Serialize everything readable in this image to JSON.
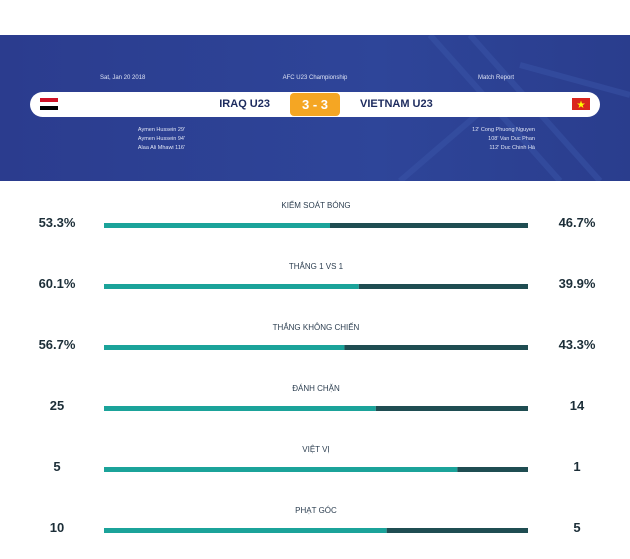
{
  "header": {
    "date": "Sat, Jan 20 2018",
    "competition": "AFC U23 Championship",
    "report": "Match Report",
    "home_team": "IRAQ U23",
    "score": "3 - 3",
    "away_team": "VIETNAM U23",
    "home_scorers": [
      "Aymen Hussein 29'",
      "Aymen Hussein 94'",
      "Alaa Ali Mhawi 116'"
    ],
    "away_scorers": [
      "12' Cong Phuong Nguyen",
      "108' Van Duc Phan",
      "112' Duc Chinh Hà"
    ]
  },
  "stats": [
    {
      "label": "KIỂM SOÁT BÓNG",
      "home": 53.3,
      "home_label": "53.3%",
      "away": 46.7,
      "away_label": "46.7%"
    },
    {
      "label": "THẮNG 1 VS 1",
      "home": 60.1,
      "home_label": "60.1%",
      "away": 39.9,
      "away_label": "39.9%"
    },
    {
      "label": "THẮNG KHÔNG CHIẾN",
      "home": 56.7,
      "home_label": "56.7%",
      "away": 43.3,
      "away_label": "43.3%"
    },
    {
      "label": "ĐÁNH CHẶN",
      "home": 25,
      "away": 14
    },
    {
      "label": "VIỆT VỊ",
      "home": 5,
      "away": 1
    },
    {
      "label": "PHẠT GÓC",
      "home": 10,
      "away": 5
    }
  ],
  "colors": {
    "home": "#1ba39a",
    "away": "#1f4d52"
  }
}
